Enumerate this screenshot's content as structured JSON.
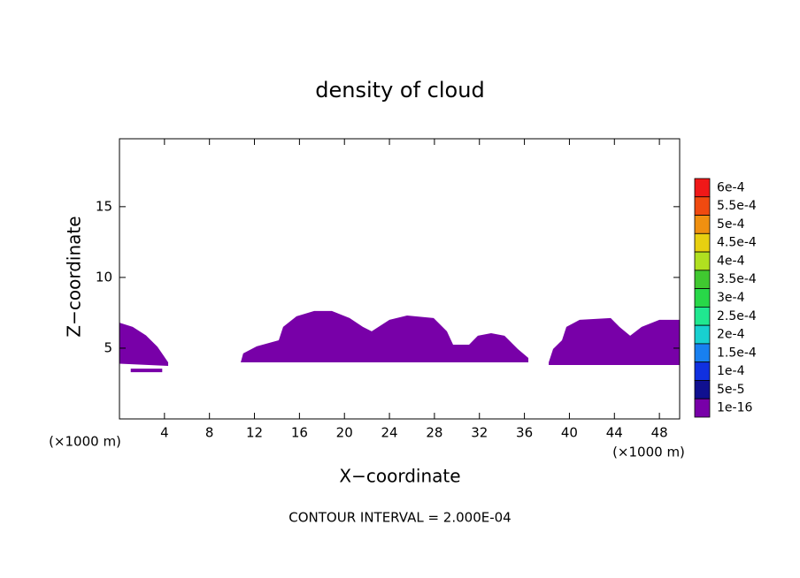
{
  "chart_data": {
    "type": "contour",
    "title": "density of cloud",
    "xlabel": "X−coordinate",
    "ylabel": "Z−coordinate",
    "x_unit_label": "(×1000 m)",
    "y_unit_label": "(×1000 m)",
    "footer": "CONTOUR INTERVAL = 2.000E-04",
    "xlim": [
      0,
      49.8
    ],
    "ylim": [
      0,
      19.8
    ],
    "xticks": [
      4,
      8,
      12,
      16,
      20,
      24,
      28,
      32,
      36,
      40,
      44,
      48
    ],
    "yticks": [
      5,
      10,
      15
    ],
    "colorbar": {
      "levels": [
        {
          "value": 0.0006,
          "label": "6e-4"
        },
        {
          "value": 0.00055,
          "label": "5.5e-4"
        },
        {
          "value": 0.0005,
          "label": "5e-4"
        },
        {
          "value": 0.00045,
          "label": "4.5e-4"
        },
        {
          "value": 0.0004,
          "label": "4e-4"
        },
        {
          "value": 0.00035,
          "label": "3.5e-4"
        },
        {
          "value": 0.0003,
          "label": "3e-4"
        },
        {
          "value": 0.00025,
          "label": "2.5e-4"
        },
        {
          "value": 0.0002,
          "label": "2e-4"
        },
        {
          "value": 0.00015,
          "label": "1.5e-4"
        },
        {
          "value": 0.0001,
          "label": "1e-4"
        },
        {
          "value": 5e-05,
          "label": "5e-5"
        },
        {
          "value": 1e-16,
          "label": "1e-16"
        }
      ],
      "colors": [
        "#f08a8a",
        "#f01818",
        "#f04a10",
        "#f09010",
        "#e8d010",
        "#b0e020",
        "#40c830",
        "#28d848",
        "#20e890",
        "#18d0d0",
        "#1880f0",
        "#1030e0",
        "#101090",
        "#7800a8"
      ]
    },
    "region_color": "#7800a8",
    "regions": [
      {
        "x": [
          0,
          1.18,
          2.36,
          3.38,
          4.33,
          4.33,
          0
        ],
        "y": [
          6.8,
          6.5,
          5.9,
          5.1,
          4.0,
          3.75,
          3.9
        ]
      },
      {
        "x": [
          1.0,
          3.8,
          3.8,
          1.0
        ],
        "y": [
          3.55,
          3.55,
          3.3,
          3.3
        ]
      },
      {
        "x": [
          10.78,
          11.0,
          12.2,
          14.16,
          14.55,
          15.74,
          17.31,
          18.88,
          20.46,
          21.64,
          22.42,
          24.0,
          25.57,
          27.93,
          29.11,
          29.66,
          31.08,
          31.86,
          33.04,
          34.23,
          35.41,
          36.35,
          36.35
        ],
        "y": [
          4.0,
          4.63,
          5.13,
          5.56,
          6.5,
          7.25,
          7.63,
          7.63,
          7.13,
          6.5,
          6.19,
          7.0,
          7.31,
          7.13,
          6.19,
          5.25,
          5.25,
          5.88,
          6.06,
          5.88,
          4.94,
          4.31,
          4.0
        ]
      },
      {
        "x": [
          38.16,
          38.55,
          39.34,
          39.73,
          40.91,
          43.67,
          44.45,
          45.4,
          46.42,
          48.0,
          49.8,
          49.8,
          38.16
        ],
        "y": [
          4.0,
          4.94,
          5.56,
          6.5,
          7.0,
          7.13,
          6.5,
          5.88,
          6.5,
          7.0,
          7.0,
          3.81,
          3.81
        ]
      }
    ]
  }
}
